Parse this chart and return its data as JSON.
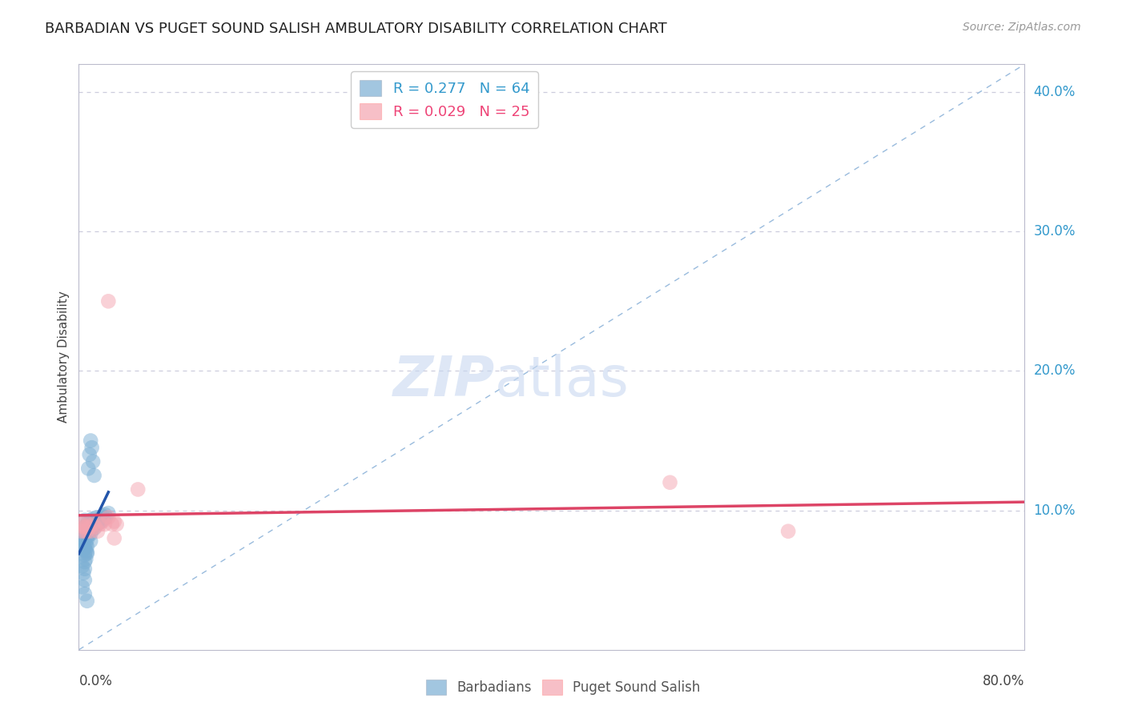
{
  "title": "BARBADIAN VS PUGET SOUND SALISH AMBULATORY DISABILITY CORRELATION CHART",
  "source": "Source: ZipAtlas.com",
  "ylabel": "Ambulatory Disability",
  "watermark": "ZIPatlas",
  "legend_blue_r": "R = 0.277",
  "legend_blue_n": "N = 64",
  "legend_pink_r": "R = 0.029",
  "legend_pink_n": "N = 25",
  "xlim": [
    0.0,
    0.8
  ],
  "ylim": [
    -0.01,
    0.43
  ],
  "plot_ylim": [
    0.0,
    0.42
  ],
  "ytick_vals": [
    0.1,
    0.2,
    0.3,
    0.4
  ],
  "ytick_labels": [
    "10.0%",
    "20.0%",
    "30.0%",
    "40.0%"
  ],
  "background_color": "#ffffff",
  "blue_color": "#7bafd4",
  "pink_color": "#f4a4b0",
  "blue_line_color": "#2255aa",
  "pink_line_color": "#dd4466",
  "diagonal_color": "#99bbdd",
  "grid_color": "#ccccdd",
  "barbadians_x": [
    0.002,
    0.003,
    0.003,
    0.004,
    0.004,
    0.004,
    0.005,
    0.005,
    0.005,
    0.005,
    0.005,
    0.005,
    0.005,
    0.005,
    0.006,
    0.006,
    0.006,
    0.006,
    0.007,
    0.007,
    0.007,
    0.007,
    0.007,
    0.008,
    0.008,
    0.008,
    0.009,
    0.009,
    0.01,
    0.01,
    0.01,
    0.01,
    0.011,
    0.011,
    0.012,
    0.012,
    0.013,
    0.013,
    0.014,
    0.015,
    0.015,
    0.016,
    0.017,
    0.018,
    0.019,
    0.02,
    0.021,
    0.022,
    0.023,
    0.025,
    0.003,
    0.004,
    0.005,
    0.006,
    0.007,
    0.008,
    0.009,
    0.01,
    0.011,
    0.012,
    0.013,
    0.003,
    0.005,
    0.007
  ],
  "barbadians_y": [
    0.075,
    0.082,
    0.078,
    0.085,
    0.08,
    0.072,
    0.088,
    0.083,
    0.078,
    0.073,
    0.068,
    0.063,
    0.058,
    0.093,
    0.086,
    0.081,
    0.076,
    0.071,
    0.089,
    0.084,
    0.079,
    0.074,
    0.069,
    0.092,
    0.087,
    0.082,
    0.09,
    0.085,
    0.093,
    0.088,
    0.083,
    0.078,
    0.091,
    0.086,
    0.094,
    0.089,
    0.092,
    0.087,
    0.09,
    0.095,
    0.09,
    0.093,
    0.091,
    0.094,
    0.092,
    0.096,
    0.094,
    0.097,
    0.095,
    0.098,
    0.06,
    0.055,
    0.05,
    0.065,
    0.07,
    0.13,
    0.14,
    0.15,
    0.145,
    0.135,
    0.125,
    0.045,
    0.04,
    0.035
  ],
  "puget_x": [
    0.002,
    0.003,
    0.004,
    0.005,
    0.005,
    0.006,
    0.007,
    0.008,
    0.009,
    0.01,
    0.012,
    0.014,
    0.016,
    0.018,
    0.02,
    0.022,
    0.025,
    0.028,
    0.03,
    0.032,
    0.5,
    0.6,
    0.05,
    0.03,
    0.025
  ],
  "puget_y": [
    0.085,
    0.09,
    0.088,
    0.085,
    0.092,
    0.088,
    0.085,
    0.09,
    0.088,
    0.085,
    0.09,
    0.088,
    0.085,
    0.09,
    0.092,
    0.09,
    0.095,
    0.09,
    0.092,
    0.09,
    0.12,
    0.085,
    0.115,
    0.08,
    0.25
  ]
}
